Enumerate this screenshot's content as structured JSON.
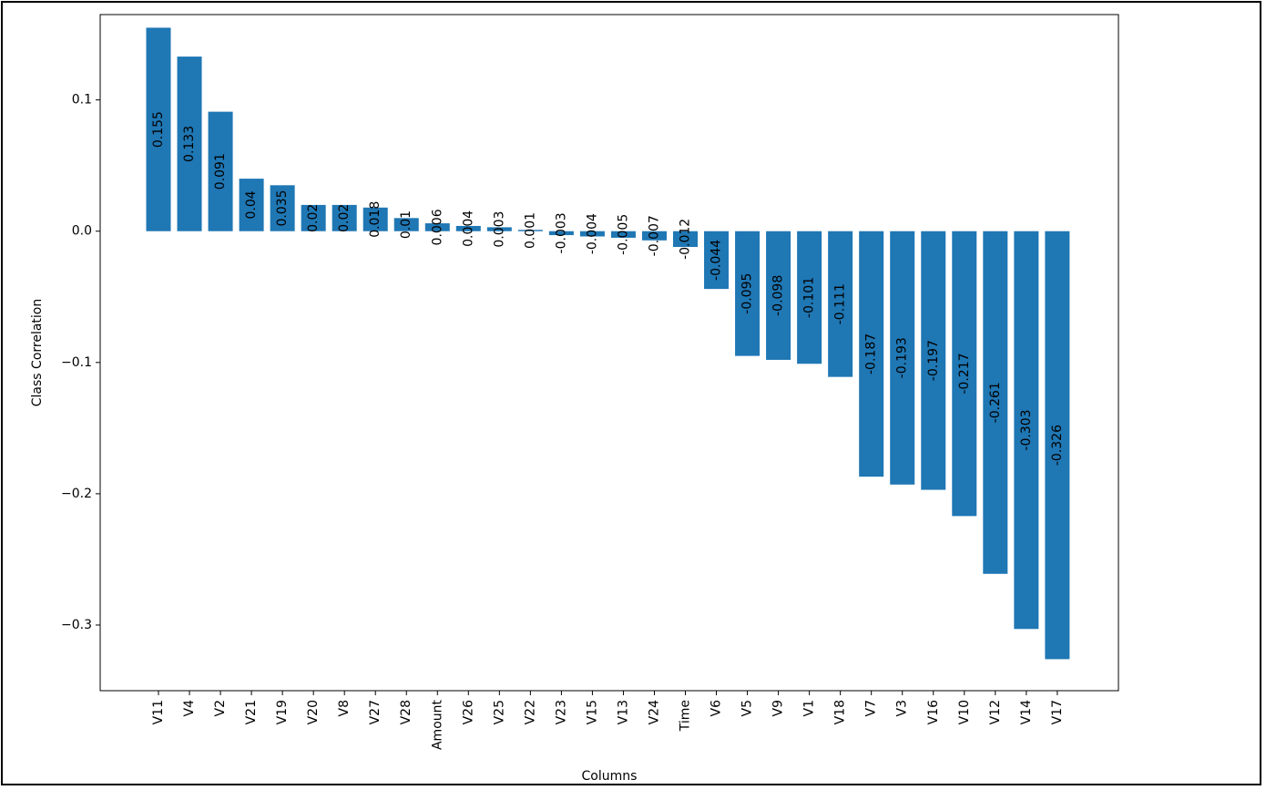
{
  "chart_data": {
    "type": "bar",
    "title": "",
    "xlabel": "Columns",
    "ylabel": "Class Correlation",
    "categories": [
      "V11",
      "V4",
      "V2",
      "V21",
      "V19",
      "V20",
      "V8",
      "V27",
      "V28",
      "Amount",
      "V26",
      "V25",
      "V22",
      "V23",
      "V15",
      "V13",
      "V24",
      "Time",
      "V6",
      "V5",
      "V9",
      "V1",
      "V18",
      "V7",
      "V3",
      "V16",
      "V10",
      "V12",
      "V14",
      "V17"
    ],
    "values": [
      0.155,
      0.133,
      0.091,
      0.04,
      0.035,
      0.02,
      0.02,
      0.018,
      0.01,
      0.006,
      0.004,
      0.003,
      0.001,
      -0.003,
      -0.004,
      -0.005,
      -0.007,
      -0.012,
      -0.044,
      -0.095,
      -0.098,
      -0.101,
      -0.111,
      -0.187,
      -0.193,
      -0.197,
      -0.217,
      -0.261,
      -0.303,
      -0.326
    ],
    "bar_labels": [
      "0.155",
      "0.133",
      "0.091",
      "0.04",
      "0.035",
      "0.02",
      "0.02",
      "0.018",
      "0.01",
      "0.006",
      "0.004",
      "0.003",
      "0.001",
      "-0.003",
      "-0.004",
      "-0.005",
      "-0.007",
      "-0.012",
      "-0.044",
      "-0.095",
      "-0.098",
      "-0.101",
      "-0.111",
      "-0.187",
      "-0.193",
      "-0.197",
      "-0.217",
      "-0.261",
      "-0.303",
      "-0.326"
    ],
    "ylim": [
      -0.35,
      0.165
    ],
    "yticks": [
      0.1,
      0.0,
      -0.1,
      -0.2,
      -0.3
    ],
    "ytick_labels": [
      "0.1",
      "0.0",
      "−0.1",
      "−0.2",
      "−0.3"
    ],
    "bar_color": "#1f77b4",
    "grid": false
  }
}
